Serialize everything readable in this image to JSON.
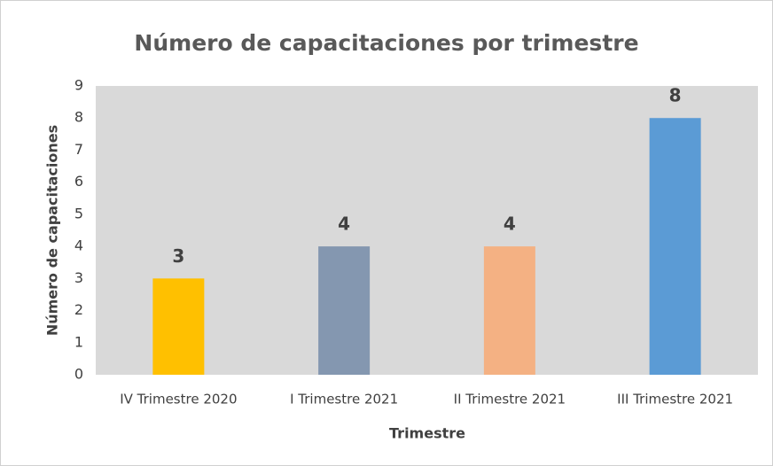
{
  "chart_data": {
    "type": "bar",
    "title": "Número de capacitaciones por trimestre",
    "x_label": "Trimestre",
    "y_label": "Número de capacitaciones",
    "categories": [
      "IV Trimestre 2020",
      "I Trimestre 2021",
      "II Trimestre 2021",
      "III Trimestre 2021"
    ],
    "values": [
      3,
      4,
      4,
      8
    ],
    "colors": [
      "#ffc000",
      "#8497b0",
      "#f4b183",
      "#5b9bd5"
    ],
    "ylim": [
      0,
      9
    ],
    "yticks": [
      0,
      1,
      2,
      3,
      4,
      5,
      6,
      7,
      8,
      9
    ],
    "grid": false
  }
}
